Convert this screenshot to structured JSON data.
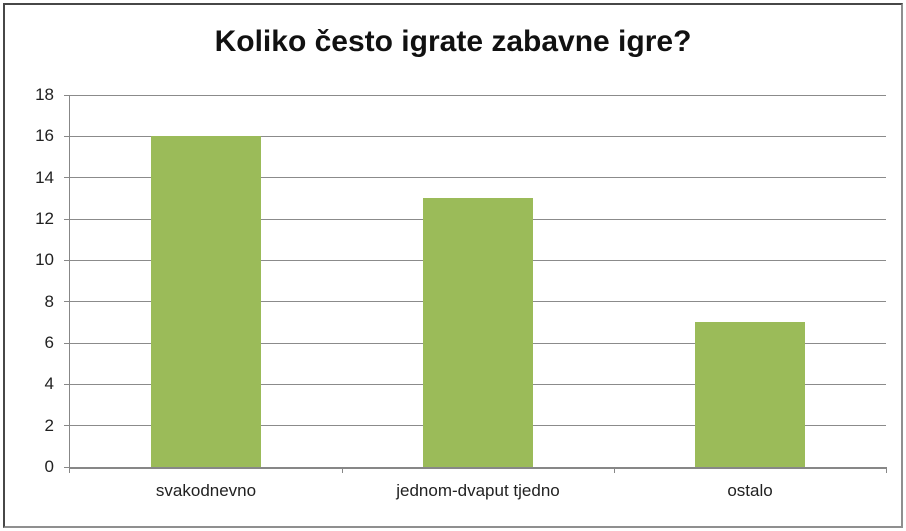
{
  "chart_data": {
    "type": "bar",
    "title": "Koliko često igrate zabavne igre?",
    "categories": [
      "svakodnevno",
      "jednom-dvaput tjedno",
      "ostalo"
    ],
    "values": [
      16,
      13,
      7
    ],
    "xlabel": "",
    "ylabel": "",
    "ylim": [
      0,
      18
    ],
    "ytick_step": 2,
    "ytick_labels": [
      "0",
      "2",
      "4",
      "6",
      "8",
      "10",
      "12",
      "14",
      "16",
      "18"
    ],
    "grid": true,
    "legend": false,
    "bar_color": "#9BBB59",
    "axis_color": "#878787",
    "gridline_color": "#8b8b8b",
    "text_color": "#212121",
    "title_color": "#111111",
    "background_color": "#ffffff",
    "frame_border_dark": "#474747",
    "frame_border_light": "#8f8f8f"
  }
}
